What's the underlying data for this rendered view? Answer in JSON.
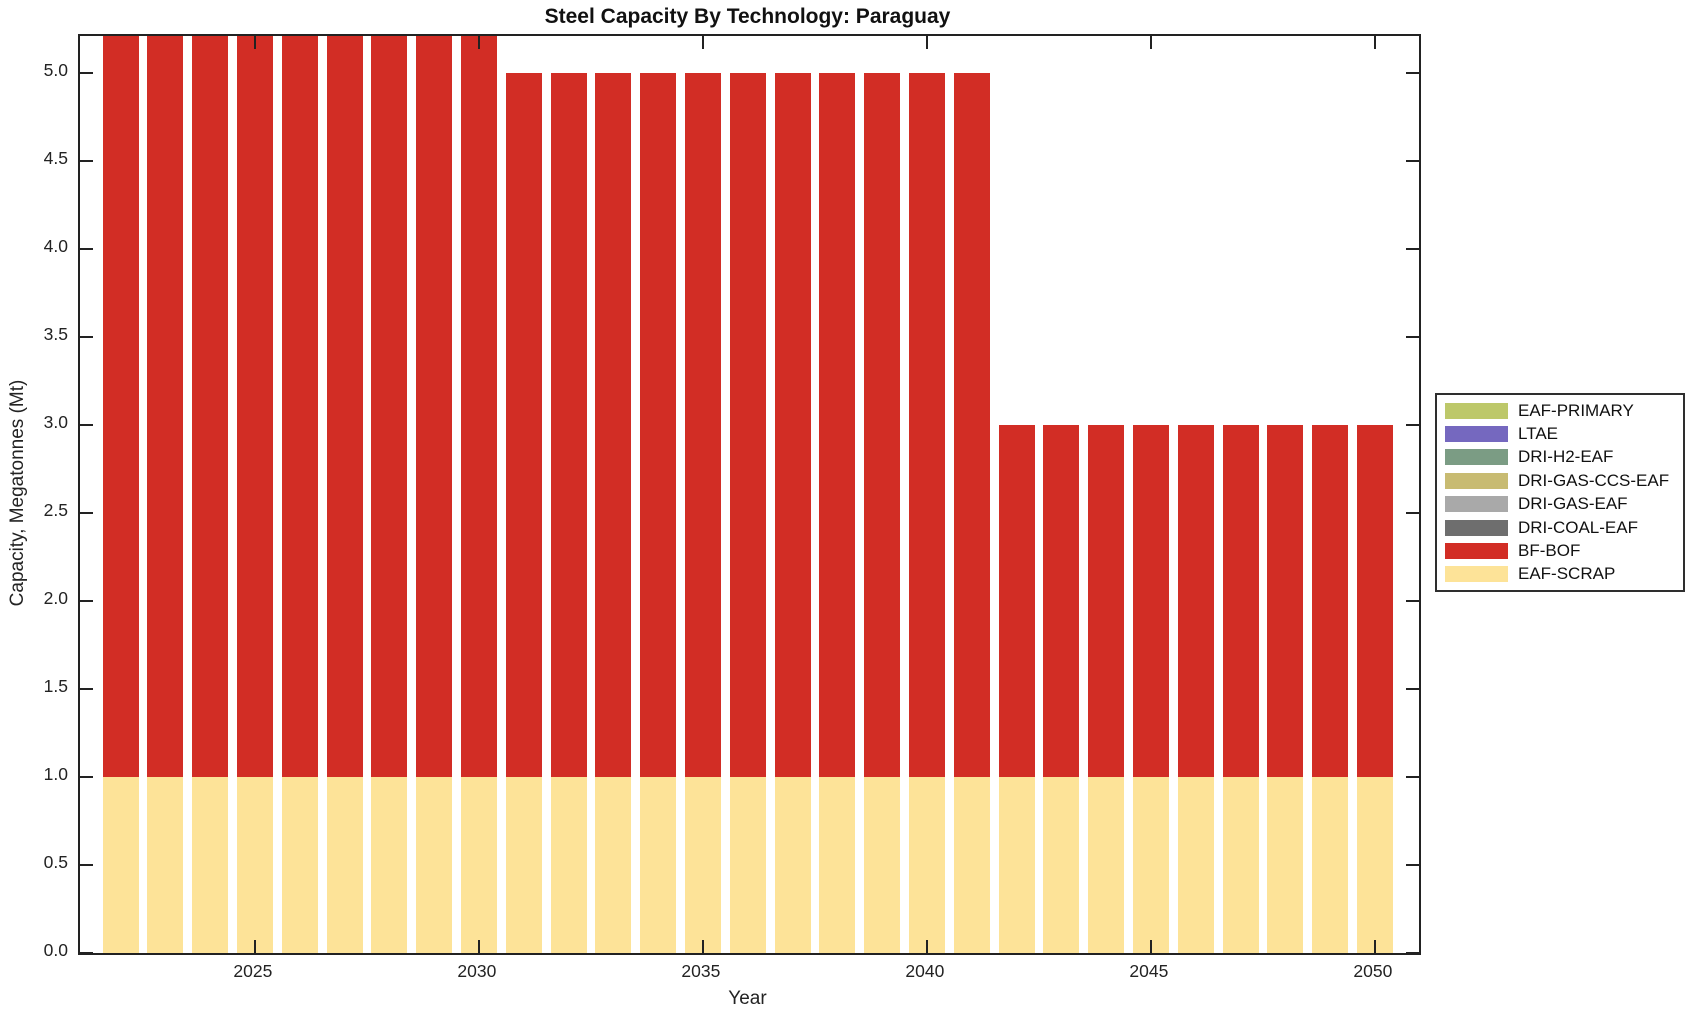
{
  "chart_data": {
    "type": "bar",
    "stacked": true,
    "title": "Steel Capacity By Technology: Paraguay",
    "xlabel": "Year",
    "ylabel": "Capacity, Megatonnes (Mt)",
    "years": [
      2022,
      2023,
      2024,
      2025,
      2026,
      2027,
      2028,
      2029,
      2030,
      2031,
      2032,
      2033,
      2034,
      2035,
      2036,
      2037,
      2038,
      2039,
      2040,
      2041,
      2042,
      2043,
      2044,
      2045,
      2046,
      2047,
      2048,
      2049,
      2050
    ],
    "series": [
      {
        "name": "EAF-PRIMARY",
        "color": "#bdc86a",
        "values": [
          0,
          0,
          0,
          0,
          0,
          0,
          0,
          0,
          0,
          0,
          0,
          0,
          0,
          0,
          0,
          0,
          0,
          0,
          0,
          0,
          0,
          0,
          0,
          0,
          0,
          0,
          0,
          0,
          0
        ]
      },
      {
        "name": "LTAE",
        "color": "#7568bf",
        "values": [
          0,
          0,
          0,
          0,
          0,
          0,
          0,
          0,
          0,
          0,
          0,
          0,
          0,
          0,
          0,
          0,
          0,
          0,
          0,
          0,
          0,
          0,
          0,
          0,
          0,
          0,
          0,
          0,
          0
        ]
      },
      {
        "name": "DRI-H2-EAF",
        "color": "#7b9c84",
        "values": [
          0,
          0,
          0,
          0,
          0,
          0,
          0,
          0,
          0,
          0,
          0,
          0,
          0,
          0,
          0,
          0,
          0,
          0,
          0,
          0,
          0,
          0,
          0,
          0,
          0,
          0,
          0,
          0,
          0
        ]
      },
      {
        "name": "DRI-GAS-CCS-EAF",
        "color": "#c8bb72",
        "values": [
          0,
          0,
          0,
          0,
          0,
          0,
          0,
          0,
          0,
          0,
          0,
          0,
          0,
          0,
          0,
          0,
          0,
          0,
          0,
          0,
          0,
          0,
          0,
          0,
          0,
          0,
          0,
          0,
          0
        ]
      },
      {
        "name": "DRI-GAS-EAF",
        "color": "#a9a9a9",
        "values": [
          0,
          0,
          0,
          0,
          0,
          0,
          0,
          0,
          0,
          0,
          0,
          0,
          0,
          0,
          0,
          0,
          0,
          0,
          0,
          0,
          0,
          0,
          0,
          0,
          0,
          0,
          0,
          0,
          0
        ]
      },
      {
        "name": "DRI-COAL-EAF",
        "color": "#6e6e6e",
        "values": [
          0,
          0,
          0,
          0,
          0,
          0,
          0,
          0,
          0,
          0,
          0,
          0,
          0,
          0,
          0,
          0,
          0,
          0,
          0,
          0,
          0,
          0,
          0,
          0,
          0,
          0,
          0,
          0,
          0
        ]
      },
      {
        "name": "BF-BOF",
        "color": "#d22d25",
        "values": [
          4.5,
          4.5,
          4.5,
          4.5,
          4.5,
          4.5,
          4.5,
          4.5,
          4.5,
          4.0,
          4.0,
          4.0,
          4.0,
          4.0,
          4.0,
          4.0,
          4.0,
          4.0,
          4.0,
          4.0,
          2.0,
          2.0,
          2.0,
          2.0,
          2.0,
          2.0,
          2.0,
          2.0,
          2.0
        ]
      },
      {
        "name": "EAF-SCRAP",
        "color": "#fde398",
        "values": [
          1,
          1,
          1,
          1,
          1,
          1,
          1,
          1,
          1,
          1,
          1,
          1,
          1,
          1,
          1,
          1,
          1,
          1,
          1,
          1,
          1,
          1,
          1,
          1,
          1,
          1,
          1,
          1,
          1
        ]
      }
    ],
    "stack_order_bottom_to_top": [
      "EAF-SCRAP",
      "BF-BOF",
      "DRI-COAL-EAF",
      "DRI-GAS-EAF",
      "DRI-GAS-CCS-EAF",
      "DRI-H2-EAF",
      "LTAE",
      "EAF-PRIMARY"
    ],
    "ylim": [
      0,
      5.21
    ],
    "yticks": [
      0.0,
      0.5,
      1.0,
      1.5,
      2.0,
      2.5,
      3.0,
      3.5,
      4.0,
      4.5,
      5.0
    ],
    "xticks": [
      2025,
      2030,
      2035,
      2040,
      2045,
      2050
    ],
    "legend_position": "right-outside",
    "grid": false,
    "note": "Bars for 2022-2030 exceed the y-axis upper limit and are clipped at the top of the axes; visible totals are 5.0 Mt for 2031-2041 and 3.0 Mt for 2042-2050, each with a constant 1.0 Mt EAF-SCRAP base."
  }
}
